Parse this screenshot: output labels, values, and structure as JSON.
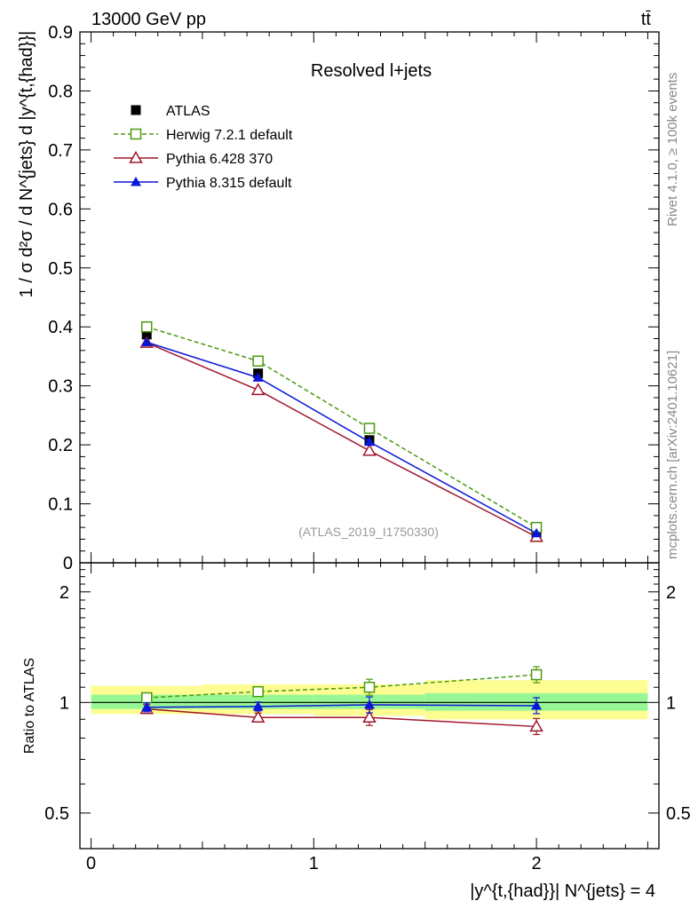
{
  "header": {
    "energy_label": "13000 GeV pp",
    "process_label": "tt̄"
  },
  "side_labels": {
    "rivet": "Rivet 4.1.0, ≥ 100k events",
    "mcplots": "mcplots.cern.ch [arXiv:2401.10621]"
  },
  "chart_data": [
    {
      "type": "line",
      "panel": "main",
      "title": "Resolved l+jets",
      "watermark": "(ATLAS_2019_I1750330)",
      "ylabel": "1 / σ d²σ / d N^{jets} d |y^{t,{had}}|",
      "xlabel": "|y^{t,{had}}| N^{jets} = 4",
      "xlim": [
        -0.05,
        2.55
      ],
      "ylim": [
        0,
        0.9
      ],
      "x_ticks": [
        "0",
        "1",
        "2"
      ],
      "y_ticks": [
        "0",
        "0.1",
        "0.2",
        "0.3",
        "0.4",
        "0.5",
        "0.6",
        "0.7",
        "0.8",
        "0.9"
      ],
      "x": [
        0.25,
        0.75,
        1.25,
        2.0
      ],
      "legend": [
        "ATLAS",
        "Herwig 7.2.1 default",
        "Pythia 6.428 370",
        "Pythia 8.315 default"
      ],
      "series": [
        {
          "name": "ATLAS",
          "color": "#000000",
          "values": [
            0.387,
            0.321,
            0.208,
            0.051
          ]
        },
        {
          "name": "Herwig 7.2.1 default",
          "color": "#4a9a0e",
          "values": [
            0.4,
            0.342,
            0.228,
            0.06
          ]
        },
        {
          "name": "Pythia 6.428 370",
          "color": "#a0162a",
          "values": [
            0.373,
            0.293,
            0.19,
            0.044
          ]
        },
        {
          "name": "Pythia 8.315 default",
          "color": "#0a17d8",
          "values": [
            0.374,
            0.314,
            0.205,
            0.05
          ]
        }
      ]
    },
    {
      "type": "line",
      "panel": "ratio",
      "ylabel": "Ratio to ATLAS",
      "ylim": [
        0.4,
        2.4
      ],
      "scale": "log",
      "y_ticks": [
        "0.5",
        "1",
        "2"
      ],
      "x": [
        0.25,
        0.75,
        1.25,
        2.0
      ],
      "band_edges": [
        0,
        0.5,
        1.0,
        1.5,
        2.5
      ],
      "band_stat": [
        [
          0.96,
          1.05
        ],
        [
          0.96,
          1.05
        ],
        [
          0.96,
          1.05
        ],
        [
          0.95,
          1.06
        ]
      ],
      "band_total": [
        [
          0.93,
          1.11
        ],
        [
          0.93,
          1.12
        ],
        [
          0.92,
          1.12
        ],
        [
          0.9,
          1.15
        ]
      ],
      "series": [
        {
          "name": "Herwig 7.2.1 default",
          "color": "#4a9a0e",
          "values": [
            1.03,
            1.07,
            1.1,
            1.19
          ]
        },
        {
          "name": "Pythia 6.428 370",
          "color": "#a0162a",
          "values": [
            0.96,
            0.91,
            0.91,
            0.86
          ]
        },
        {
          "name": "Pythia 8.315 default",
          "color": "#0a17d8",
          "values": [
            0.97,
            0.975,
            0.985,
            0.98
          ]
        }
      ]
    }
  ]
}
